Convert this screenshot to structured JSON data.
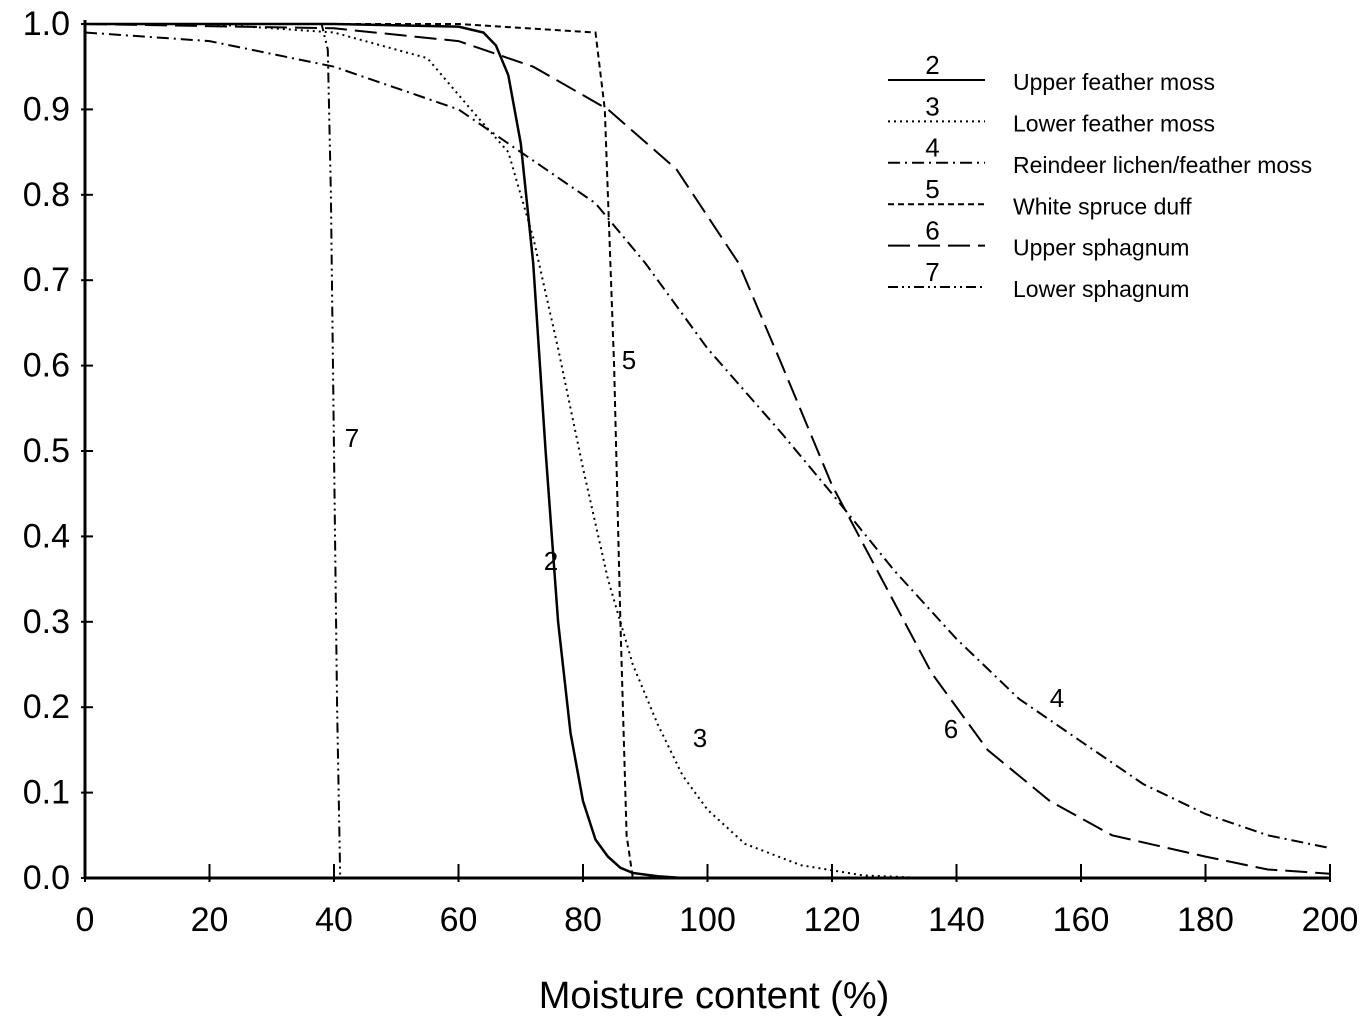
{
  "chart_data": {
    "type": "line",
    "x_label": "Moisture content (%)",
    "xlim": [
      0,
      200
    ],
    "ylim": [
      0,
      1
    ],
    "xticks": [
      0,
      20,
      40,
      60,
      80,
      100,
      120,
      140,
      160,
      180,
      200
    ],
    "yticks": [
      {
        "value": 0,
        "label": "0.0"
      },
      0.1,
      0.2,
      0.3,
      0.4,
      0.5,
      0.6,
      0.7,
      0.8,
      0.9,
      {
        "value": 1,
        "label": "1.0"
      }
    ],
    "grid": false,
    "legend": "upper right",
    "series": [
      {
        "name": "Upper feather moss",
        "label": "2",
        "color": "#000000",
        "dash": "solid",
        "x": [
          0,
          20,
          40,
          60,
          64,
          66,
          68,
          70,
          72,
          74,
          76,
          78,
          80,
          82,
          84,
          86,
          88,
          92,
          96,
          100
        ],
        "values": [
          1,
          1,
          1,
          0.997,
          0.99,
          0.975,
          0.94,
          0.86,
          0.72,
          0.5,
          0.3,
          0.17,
          0.09,
          0.045,
          0.025,
          0.012,
          0.006,
          0.002,
          0,
          0
        ]
      },
      {
        "name": "Lower feather moss",
        "label": "3",
        "color": "#000000",
        "dash": "dotted",
        "x": [
          0,
          20,
          40,
          55,
          62,
          68,
          72,
          76,
          80,
          84,
          88,
          92,
          96,
          100,
          106,
          115,
          125,
          135
        ],
        "values": [
          1,
          1,
          0.99,
          0.96,
          0.9,
          0.85,
          0.75,
          0.62,
          0.48,
          0.35,
          0.25,
          0.18,
          0.12,
          0.08,
          0.04,
          0.015,
          0.003,
          0
        ]
      },
      {
        "name": "Reindeer lichen/feather moss",
        "label": "4",
        "color": "#000000",
        "dash": "dashdot",
        "x": [
          0,
          20,
          40,
          60,
          70,
          82,
          90,
          100,
          112,
          120,
          130,
          140,
          150,
          160,
          170,
          180,
          190,
          200
        ],
        "values": [
          0.99,
          0.98,
          0.95,
          0.9,
          0.85,
          0.79,
          0.72,
          0.62,
          0.52,
          0.45,
          0.36,
          0.28,
          0.21,
          0.16,
          0.11,
          0.075,
          0.05,
          0.035
        ]
      },
      {
        "name": "White spruce duff",
        "label": "5",
        "color": "#000000",
        "dash": "dashed",
        "x": [
          0,
          40,
          60,
          82,
          83.5,
          85,
          86,
          87,
          88
        ],
        "values": [
          1,
          1,
          1,
          0.99,
          0.9,
          0.6,
          0.3,
          0.05,
          0
        ]
      },
      {
        "name": "Upper sphagnum",
        "label": "6",
        "color": "#000000",
        "dash": "longdash",
        "x": [
          0,
          40,
          60,
          72,
          84,
          95,
          105,
          112,
          120,
          128,
          136,
          145,
          155,
          165,
          180,
          190,
          200
        ],
        "values": [
          1,
          0.995,
          0.98,
          0.95,
          0.9,
          0.83,
          0.72,
          0.6,
          0.46,
          0.35,
          0.24,
          0.15,
          0.09,
          0.05,
          0.025,
          0.01,
          0.005
        ]
      },
      {
        "name": "Lower sphagnum",
        "label": "7",
        "color": "#000000",
        "dash": "dashdotdot",
        "x": [
          0,
          38,
          39,
          39.5,
          40,
          40.5,
          41
        ],
        "values": [
          1,
          1,
          0.97,
          0.8,
          0.5,
          0.2,
          0
        ]
      }
    ]
  }
}
